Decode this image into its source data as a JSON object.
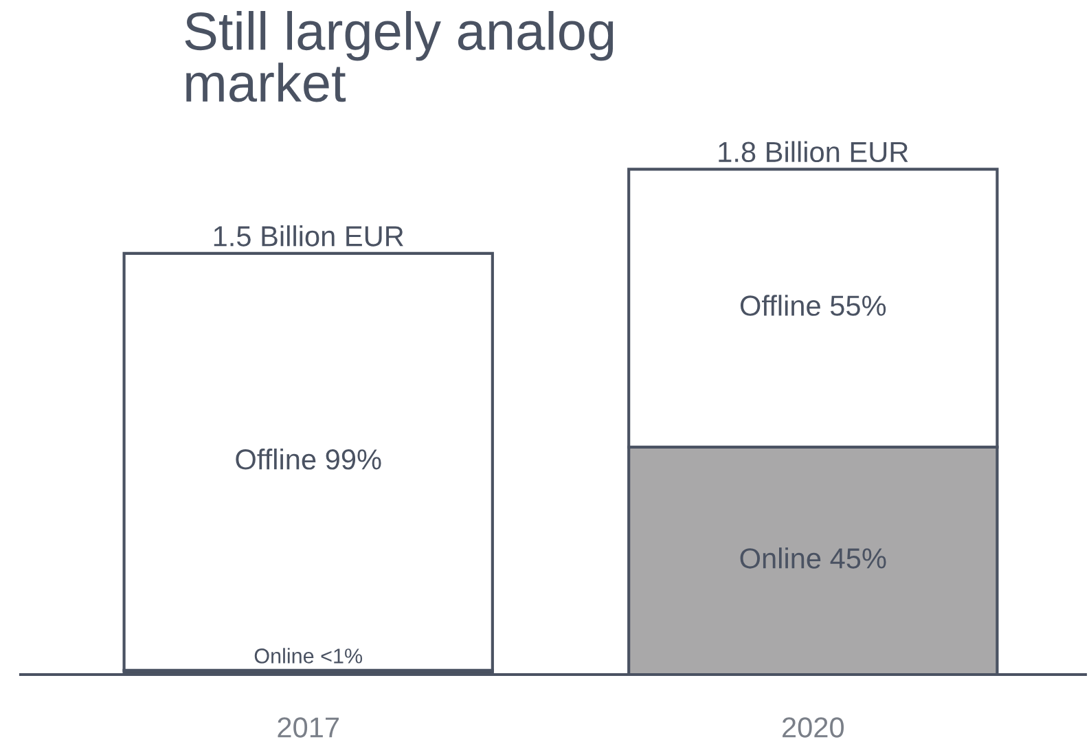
{
  "chart_data": {
    "type": "bar",
    "title": "Still largely analog market",
    "categories": [
      "2017",
      "2020"
    ],
    "stacked": true,
    "series": [
      {
        "colors": [
          "#49505f",
          "#a9a8a9"
        ],
        "values": [
          0.015,
          0.81
        ],
        "value_labels": [
          "Online <1%",
          "Online 45%"
        ]
      },
      {
        "color": "#ffffff",
        "values": [
          1.485,
          0.99
        ],
        "value_labels": [
          "Offline 99%",
          "Offline 55%"
        ]
      }
    ],
    "totals": [
      "1.5 Billion EUR",
      "1.8 Billion EUR"
    ],
    "grid": false,
    "legend": false
  }
}
